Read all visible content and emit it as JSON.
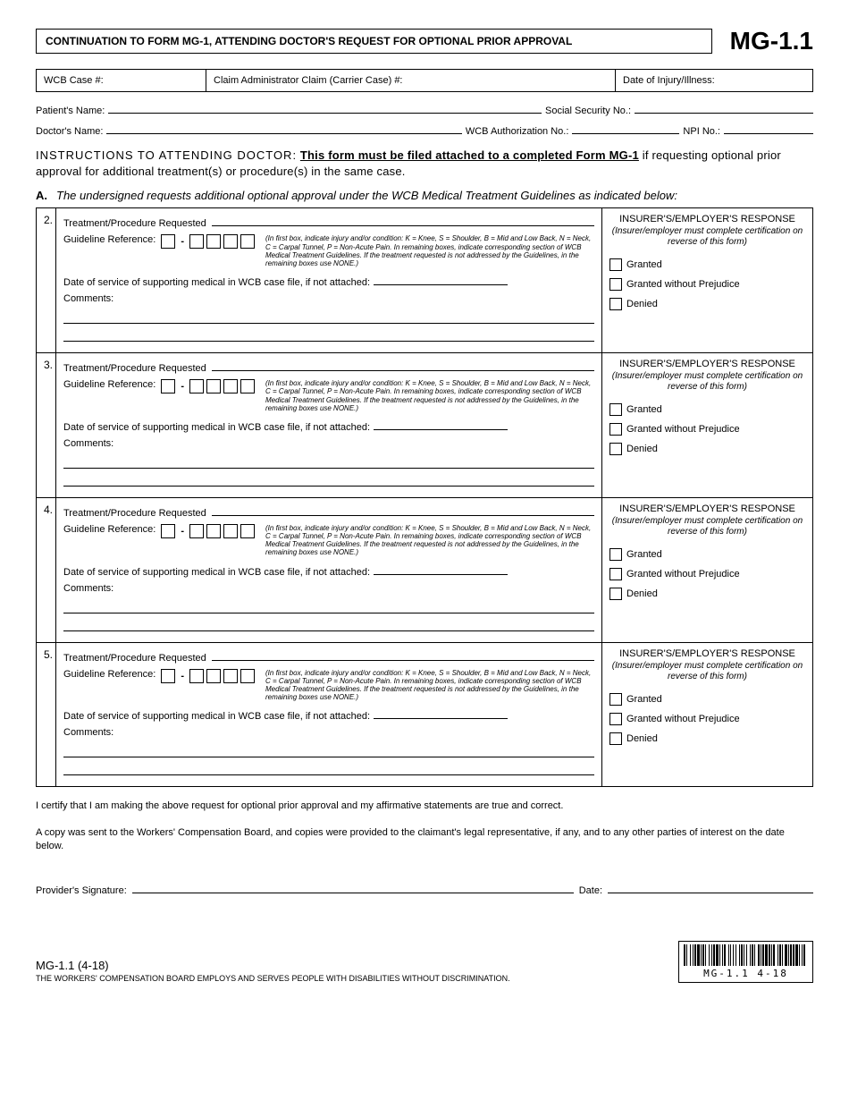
{
  "header": {
    "title": "CONTINUATION TO FORM MG-1, ATTENDING DOCTOR'S REQUEST FOR OPTIONAL PRIOR APPROVAL",
    "form_code": "MG-1.1"
  },
  "info": {
    "wcb_case_label": "WCB Case #:",
    "claim_admin_label": "Claim Administrator Claim (Carrier Case) #:",
    "date_injury_label": "Date of Injury/Illness:"
  },
  "fields": {
    "patient_name_label": "Patient's Name:",
    "ssn_label": "Social Security No.:",
    "doctor_name_label": "Doctor's Name:",
    "wcb_auth_label": "WCB Authorization No.:",
    "npi_label": "NPI No.:"
  },
  "instructions": {
    "label": "INSTRUCTIONS TO ATTENDING DOCTOR:",
    "bold_part": "This form must be filed attached to a completed Form MG-1",
    "rest": " if requesting optional prior approval for additional treatment(s) or procedure(s) in the same case."
  },
  "section_a": {
    "letter": "A.",
    "text": "The undersigned requests additional optional approval under the WCB Medical Treatment Guidelines as indicated below:"
  },
  "treatment": {
    "tp_label": "Treatment/Procedure Requested",
    "gref_label": "Guideline Reference:",
    "gref_note": "(In first box, indicate injury and/or condition: K = Knee, S = Shoulder, B = Mid and Low Back, N = Neck, C = Carpal Tunnel, P = Non-Acute Pain. In remaining boxes, indicate corresponding section of WCB Medical Treatment Guidelines. If the treatment requested is not addressed by the Guidelines, in the remaining boxes use NONE.)",
    "date_label": "Date of service of supporting medical in WCB case file, if not attached:",
    "comments_label": "Comments:"
  },
  "response": {
    "header": "INSURER'S/EMPLOYER'S RESPONSE",
    "sub": "(Insurer/employer must complete certification on reverse of this form)",
    "granted": "Granted",
    "granted_wop": "Granted without Prejudice",
    "denied": "Denied"
  },
  "items": [
    {
      "num": "2."
    },
    {
      "num": "3."
    },
    {
      "num": "4."
    },
    {
      "num": "5."
    }
  ],
  "cert1": "I certify that I am making the above request for optional prior approval and my affirmative statements are true and correct.",
  "cert2": "A copy was sent to the Workers' Compensation Board, and copies were provided to the claimant's legal representative, if any, and to any other parties of interest on the date below.",
  "signature": {
    "provider_label": "Provider's Signature:",
    "date_label": "Date:"
  },
  "footer": {
    "code": "MG-1.1 (4-18)",
    "disclaimer": "THE WORKERS' COMPENSATION BOARD EMPLOYS AND SERVES PEOPLE WITH DISABILITIES WITHOUT DISCRIMINATION.",
    "barcode_text": "MG-1.1 4-18",
    "barcode_widths": [
      2,
      1,
      1,
      3,
      1,
      2,
      1,
      1,
      2,
      1,
      3,
      1,
      1,
      1,
      2,
      1,
      1,
      3,
      1,
      2,
      1,
      1,
      2,
      1,
      3,
      1,
      1,
      2,
      1,
      1,
      2,
      3,
      1,
      1,
      1,
      2,
      1,
      2,
      1,
      3,
      1,
      1,
      2,
      1,
      1,
      2,
      1,
      3,
      1,
      1,
      2,
      1,
      1,
      3,
      2,
      1,
      1,
      1,
      2,
      1,
      3,
      1,
      2,
      1,
      1,
      1,
      2,
      3,
      1,
      1,
      2,
      1,
      1,
      2,
      3,
      1,
      1,
      1,
      2,
      1,
      2,
      1,
      3,
      1,
      1,
      2,
      1,
      1,
      2,
      3
    ]
  }
}
